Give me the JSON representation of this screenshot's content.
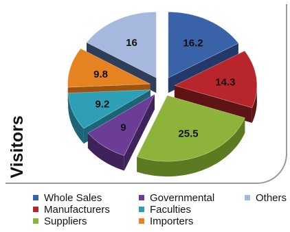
{
  "title": "",
  "chart_data": {
    "type": "pie",
    "title": "",
    "ylabel": "Visitors",
    "slices": [
      {
        "label": "Whole Sales",
        "value": 16.2,
        "value_label": "16.2",
        "color": "#3a62a8",
        "side_color": "#22396a"
      },
      {
        "label": "Manufacturers",
        "value": 14.3,
        "value_label": "14.3",
        "color": "#b8262b",
        "side_color": "#5e1414"
      },
      {
        "label": "Suppliers",
        "value": 25.5,
        "value_label": "25.5",
        "color": "#8db33a",
        "side_color": "#5c7a1f"
      },
      {
        "label": "Governmental",
        "value": 9,
        "value_label": "9",
        "color": "#6c3d96",
        "side_color": "#3f2259"
      },
      {
        "label": "Faculties",
        "value": 9.2,
        "value_label": "9.2",
        "color": "#2e9fb5",
        "side_color": "#1b6676"
      },
      {
        "label": "Importers",
        "value": 9.8,
        "value_label": "9.8",
        "color": "#e6821f",
        "side_color": "#9c5410"
      },
      {
        "label": "Others",
        "value": 16,
        "value_label": "16",
        "color": "#a6b8dd",
        "side_color": "#2e3e58"
      }
    ],
    "legend_position": "bottom"
  }
}
